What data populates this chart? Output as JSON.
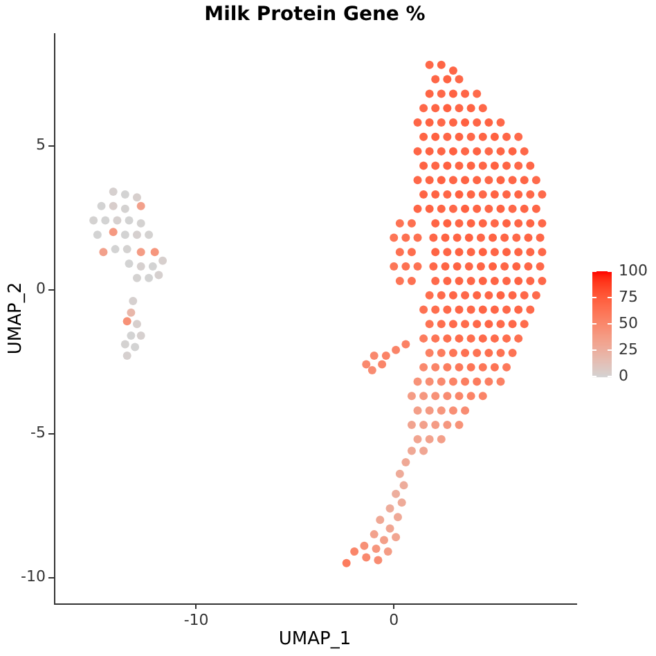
{
  "chart_data": {
    "type": "scatter",
    "title": "Milk Protein Gene %",
    "xlabel": "UMAP_1",
    "ylabel": "UMAP_2",
    "marker": "circle",
    "xlim": [
      -17.2,
      9.2
    ],
    "ylim": [
      -10.9,
      8.9
    ],
    "xticks": [
      -10,
      0
    ],
    "yticks": [
      -10,
      -5,
      0,
      5
    ],
    "clim": [
      0,
      100
    ],
    "cticks": [
      0,
      25,
      50,
      75,
      100
    ],
    "x": [
      1.8,
      2.4,
      3.0,
      2.1,
      2.7,
      3.3,
      1.8,
      2.4,
      3.0,
      3.6,
      4.2,
      1.5,
      2.1,
      2.7,
      3.3,
      3.9,
      4.5,
      1.2,
      1.8,
      2.4,
      3.0,
      3.6,
      4.2,
      4.8,
      5.4,
      1.5,
      2.1,
      2.7,
      3.3,
      3.9,
      4.5,
      5.1,
      5.7,
      6.3,
      1.2,
      1.8,
      2.4,
      3.0,
      3.6,
      4.2,
      4.8,
      5.4,
      6.0,
      6.6,
      1.5,
      2.1,
      2.7,
      3.3,
      3.9,
      4.5,
      5.1,
      5.7,
      6.3,
      6.9,
      1.2,
      1.8,
      2.4,
      3.0,
      3.6,
      4.2,
      4.8,
      5.4,
      6.0,
      6.6,
      7.2,
      1.5,
      2.1,
      2.7,
      3.3,
      3.9,
      4.5,
      5.1,
      5.7,
      6.3,
      6.9,
      7.5,
      1.2,
      1.8,
      2.4,
      3.0,
      3.6,
      4.2,
      4.8,
      5.4,
      6.0,
      6.6,
      7.2,
      0.3,
      0.9,
      2.1,
      2.7,
      3.3,
      3.9,
      4.5,
      5.1,
      5.7,
      6.3,
      6.9,
      7.5,
      0.0,
      0.6,
      1.2,
      2.0,
      2.6,
      3.2,
      3.8,
      4.4,
      5.0,
      5.6,
      6.2,
      6.8,
      7.4,
      0.3,
      0.9,
      2.1,
      2.7,
      3.3,
      3.9,
      4.5,
      5.1,
      5.7,
      6.3,
      6.9,
      7.5,
      0.0,
      0.6,
      1.2,
      2.0,
      2.6,
      3.2,
      3.8,
      4.4,
      5.0,
      5.6,
      6.2,
      6.8,
      7.4,
      0.3,
      0.9,
      2.1,
      2.7,
      3.3,
      3.9,
      4.5,
      5.1,
      5.7,
      6.3,
      6.9,
      7.5,
      1.8,
      2.4,
      3.0,
      3.6,
      4.2,
      4.8,
      5.4,
      6.0,
      6.6,
      7.2,
      1.5,
      2.1,
      2.7,
      3.3,
      3.9,
      4.5,
      5.1,
      5.7,
      6.3,
      6.9,
      1.8,
      2.4,
      3.0,
      3.6,
      4.2,
      4.8,
      5.4,
      6.0,
      6.6,
      1.5,
      2.1,
      2.7,
      3.3,
      3.9,
      4.5,
      5.1,
      5.7,
      6.3,
      1.8,
      2.4,
      3.0,
      3.6,
      4.2,
      4.8,
      5.4,
      6.0,
      1.5,
      2.1,
      2.7,
      3.3,
      3.9,
      4.5,
      5.1,
      5.7,
      1.2,
      1.8,
      2.4,
      3.0,
      3.6,
      4.2,
      4.8,
      5.4,
      0.9,
      1.5,
      2.1,
      2.7,
      3.3,
      3.9,
      4.5,
      1.2,
      1.8,
      2.4,
      3.0,
      3.6,
      0.9,
      1.5,
      2.1,
      2.7,
      3.3,
      1.2,
      1.8,
      2.4,
      0.9,
      1.5,
      -1.4,
      -1.1,
      -1.0,
      -0.6,
      -0.4,
      0.1,
      0.6,
      0.6,
      0.3,
      0.5,
      0.1,
      0.4,
      -0.2,
      0.2,
      -0.7,
      -0.2,
      -1.0,
      -0.5,
      0.1,
      -1.5,
      -0.9,
      -0.3,
      -2.0,
      -1.4,
      -0.8,
      -2.4,
      -14.2,
      -13.6,
      -13.0,
      -14.8,
      -14.2,
      -13.6,
      -12.8,
      -15.2,
      -14.6,
      -14.0,
      -13.4,
      -12.8,
      -14.2,
      -15.0,
      -13.6,
      -13.0,
      -12.4,
      -14.7,
      -14.1,
      -13.5,
      -12.8,
      -12.1,
      -11.7,
      -13.4,
      -12.8,
      -12.2,
      -13.0,
      -12.4,
      -11.9,
      -13.2,
      -13.3,
      -13.5,
      -13.0,
      -13.3,
      -12.8,
      -13.6,
      -13.1,
      -13.5
    ],
    "values": [
      7.8,
      7.8,
      7.6,
      7.3,
      7.3,
      7.3,
      6.8,
      6.8,
      6.8,
      6.8,
      6.8,
      6.3,
      6.3,
      6.3,
      6.3,
      6.3,
      6.3,
      5.8,
      5.8,
      5.8,
      5.8,
      5.8,
      5.8,
      5.8,
      5.8,
      5.3,
      5.3,
      5.3,
      5.3,
      5.3,
      5.3,
      5.3,
      5.3,
      5.3,
      4.8,
      4.8,
      4.8,
      4.8,
      4.8,
      4.8,
      4.8,
      4.8,
      4.8,
      4.8,
      4.3,
      4.3,
      4.3,
      4.3,
      4.3,
      4.3,
      4.3,
      4.3,
      4.3,
      4.3,
      3.8,
      3.8,
      3.8,
      3.8,
      3.8,
      3.8,
      3.8,
      3.8,
      3.8,
      3.8,
      3.8,
      3.3,
      3.3,
      3.3,
      3.3,
      3.3,
      3.3,
      3.3,
      3.3,
      3.3,
      3.3,
      3.3,
      2.8,
      2.8,
      2.8,
      2.8,
      2.8,
      2.8,
      2.8,
      2.8,
      2.8,
      2.8,
      2.8,
      2.3,
      2.3,
      2.3,
      2.3,
      2.3,
      2.3,
      2.3,
      2.3,
      2.3,
      2.3,
      2.3,
      2.3,
      1.8,
      1.8,
      1.8,
      1.8,
      1.8,
      1.8,
      1.8,
      1.8,
      1.8,
      1.8,
      1.8,
      1.8,
      1.8,
      1.3,
      1.3,
      1.3,
      1.3,
      1.3,
      1.3,
      1.3,
      1.3,
      1.3,
      1.3,
      1.3,
      1.3,
      0.8,
      0.8,
      0.8,
      0.8,
      0.8,
      0.8,
      0.8,
      0.8,
      0.8,
      0.8,
      0.8,
      0.8,
      0.8,
      0.3,
      0.3,
      0.3,
      0.3,
      0.3,
      0.3,
      0.3,
      0.3,
      0.3,
      0.3,
      0.3,
      0.3,
      -0.2,
      -0.2,
      -0.2,
      -0.2,
      -0.2,
      -0.2,
      -0.2,
      -0.2,
      -0.2,
      -0.2,
      -0.7,
      -0.7,
      -0.7,
      -0.7,
      -0.7,
      -0.7,
      -0.7,
      -0.7,
      -0.7,
      -0.7,
      -1.2,
      -1.2,
      -1.2,
      -1.2,
      -1.2,
      -1.2,
      -1.2,
      -1.2,
      -1.2,
      -1.7,
      -1.7,
      -1.7,
      -1.7,
      -1.7,
      -1.7,
      -1.7,
      -1.7,
      -1.7,
      -2.2,
      -2.2,
      -2.2,
      -2.2,
      -2.2,
      -2.2,
      -2.2,
      -2.2,
      -2.7,
      -2.7,
      -2.7,
      -2.7,
      -2.7,
      -2.7,
      -2.7,
      -2.7,
      -3.2,
      -3.2,
      -3.2,
      -3.2,
      -3.2,
      -3.2,
      -3.2,
      -3.2,
      -3.7,
      -3.7,
      -3.7,
      -3.7,
      -3.7,
      -3.7,
      -3.7,
      -4.2,
      -4.2,
      -4.2,
      -4.2,
      -4.2,
      -4.7,
      -4.7,
      -4.7,
      -4.7,
      -4.7,
      -5.2,
      -5.2,
      -5.2,
      -5.6,
      -5.6,
      -2.6,
      -2.8,
      -2.3,
      -2.6,
      -2.3,
      -2.1,
      -1.9,
      -6.0,
      -6.4,
      -6.8,
      -7.1,
      -7.4,
      -7.6,
      -7.9,
      -8.0,
      -8.3,
      -8.5,
      -8.7,
      -8.6,
      -8.9,
      -9.0,
      -9.1,
      -9.1,
      -9.3,
      -9.4,
      -9.5,
      3.4,
      3.3,
      3.2,
      2.9,
      2.9,
      2.8,
      2.9,
      2.4,
      2.4,
      2.4,
      2.4,
      2.3,
      2.0,
      1.9,
      1.9,
      1.9,
      1.9,
      1.3,
      1.4,
      1.4,
      1.3,
      1.3,
      1.0,
      0.9,
      0.8,
      0.8,
      0.4,
      0.4,
      0.5,
      -0.4,
      -0.8,
      -1.1,
      -1.2,
      -1.6,
      -1.6,
      -1.9,
      -2.0,
      -2.3
    ],
    "cvalues": [
      69,
      71,
      70,
      70,
      72,
      69,
      71,
      69,
      72,
      70,
      68,
      69,
      71,
      73,
      70,
      72,
      69,
      70,
      72,
      69,
      71,
      73,
      70,
      72,
      69,
      71,
      73,
      70,
      72,
      69,
      71,
      73,
      70,
      68,
      70,
      72,
      71,
      73,
      70,
      72,
      69,
      71,
      72,
      69,
      72,
      70,
      73,
      71,
      72,
      70,
      73,
      71,
      69,
      70,
      69,
      71,
      73,
      70,
      72,
      71,
      69,
      72,
      70,
      71,
      68,
      71,
      72,
      70,
      73,
      71,
      69,
      72,
      70,
      71,
      69,
      68,
      70,
      72,
      71,
      69,
      73,
      71,
      70,
      72,
      69,
      71,
      70,
      63,
      65,
      71,
      73,
      70,
      72,
      71,
      69,
      72,
      70,
      71,
      69,
      62,
      65,
      64,
      70,
      72,
      71,
      73,
      70,
      72,
      71,
      69,
      71,
      70,
      64,
      66,
      71,
      70,
      72,
      71,
      73,
      70,
      72,
      71,
      70,
      69,
      61,
      64,
      63,
      69,
      71,
      72,
      70,
      71,
      73,
      70,
      72,
      70,
      69,
      62,
      64,
      68,
      70,
      71,
      70,
      72,
      71,
      70,
      72,
      70,
      69,
      66,
      68,
      70,
      69,
      71,
      70,
      72,
      70,
      69,
      68,
      64,
      66,
      68,
      70,
      69,
      71,
      70,
      69,
      70,
      68,
      63,
      66,
      68,
      67,
      69,
      70,
      68,
      69,
      67,
      58,
      62,
      65,
      67,
      66,
      68,
      67,
      66,
      65,
      55,
      58,
      62,
      64,
      63,
      65,
      64,
      63,
      50,
      53,
      57,
      60,
      62,
      61,
      63,
      60,
      44,
      47,
      50,
      54,
      57,
      58,
      56,
      55,
      38,
      41,
      45,
      48,
      52,
      54,
      53,
      36,
      39,
      42,
      46,
      48,
      33,
      35,
      38,
      41,
      44,
      32,
      34,
      36,
      30,
      31,
      50,
      48,
      50,
      52,
      54,
      53,
      55,
      30,
      28,
      27,
      26,
      28,
      27,
      29,
      30,
      31,
      34,
      36,
      32,
      45,
      42,
      38,
      52,
      50,
      48,
      58,
      2,
      0,
      3,
      0,
      4,
      1,
      35,
      1,
      0,
      2,
      0,
      1,
      40,
      0,
      0,
      2,
      1,
      35,
      0,
      1,
      38,
      42,
      3,
      0,
      2,
      0,
      1,
      0,
      2,
      2,
      20,
      45,
      3,
      0,
      2,
      1,
      0,
      2
    ]
  }
}
